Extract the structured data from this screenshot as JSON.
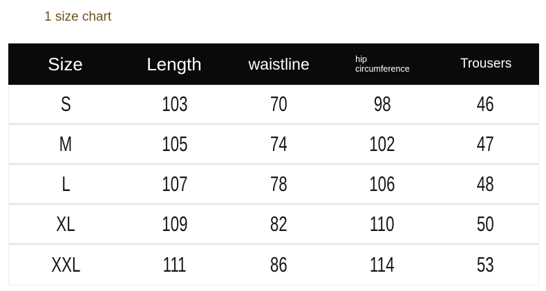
{
  "title": {
    "text": "1 size chart"
  },
  "colors": {
    "title_text": "#6d521e",
    "header_bg": "#0a0a0a",
    "header_text": "#ffffff",
    "body_text": "#161616",
    "row_separator": "#e1e1e1"
  },
  "table": {
    "header": {
      "size": "Size",
      "length": "Length",
      "waistline": "waistline",
      "hip_line1": "hip",
      "hip_line2": "circumference",
      "trousers": "Trousers"
    },
    "rows": [
      {
        "size": "S",
        "length": "103",
        "waistline": "70",
        "hip": "98",
        "trousers": "46"
      },
      {
        "size": "M",
        "length": "105",
        "waistline": "74",
        "hip": "102",
        "trousers": "47"
      },
      {
        "size": "L",
        "length": "107",
        "waistline": "78",
        "hip": "106",
        "trousers": "48"
      },
      {
        "size": "XL",
        "length": "109",
        "waistline": "82",
        "hip": "110",
        "trousers": "50"
      },
      {
        "size": "XXL",
        "length": "111",
        "waistline": "86",
        "hip": "114",
        "trousers": "53"
      }
    ]
  },
  "chart_data": {
    "type": "table",
    "title": "1 size chart",
    "columns": [
      "Size",
      "Length",
      "waistline",
      "hip circumference",
      "Trousers"
    ],
    "rows": [
      [
        "S",
        103,
        70,
        98,
        46
      ],
      [
        "M",
        105,
        74,
        102,
        47
      ],
      [
        "L",
        107,
        78,
        106,
        48
      ],
      [
        "XL",
        109,
        82,
        110,
        50
      ],
      [
        "XXL",
        111,
        86,
        114,
        53
      ]
    ],
    "layout": {
      "header_style": "black-bar",
      "row_separator": "thin-gray-line",
      "grid": false
    }
  }
}
